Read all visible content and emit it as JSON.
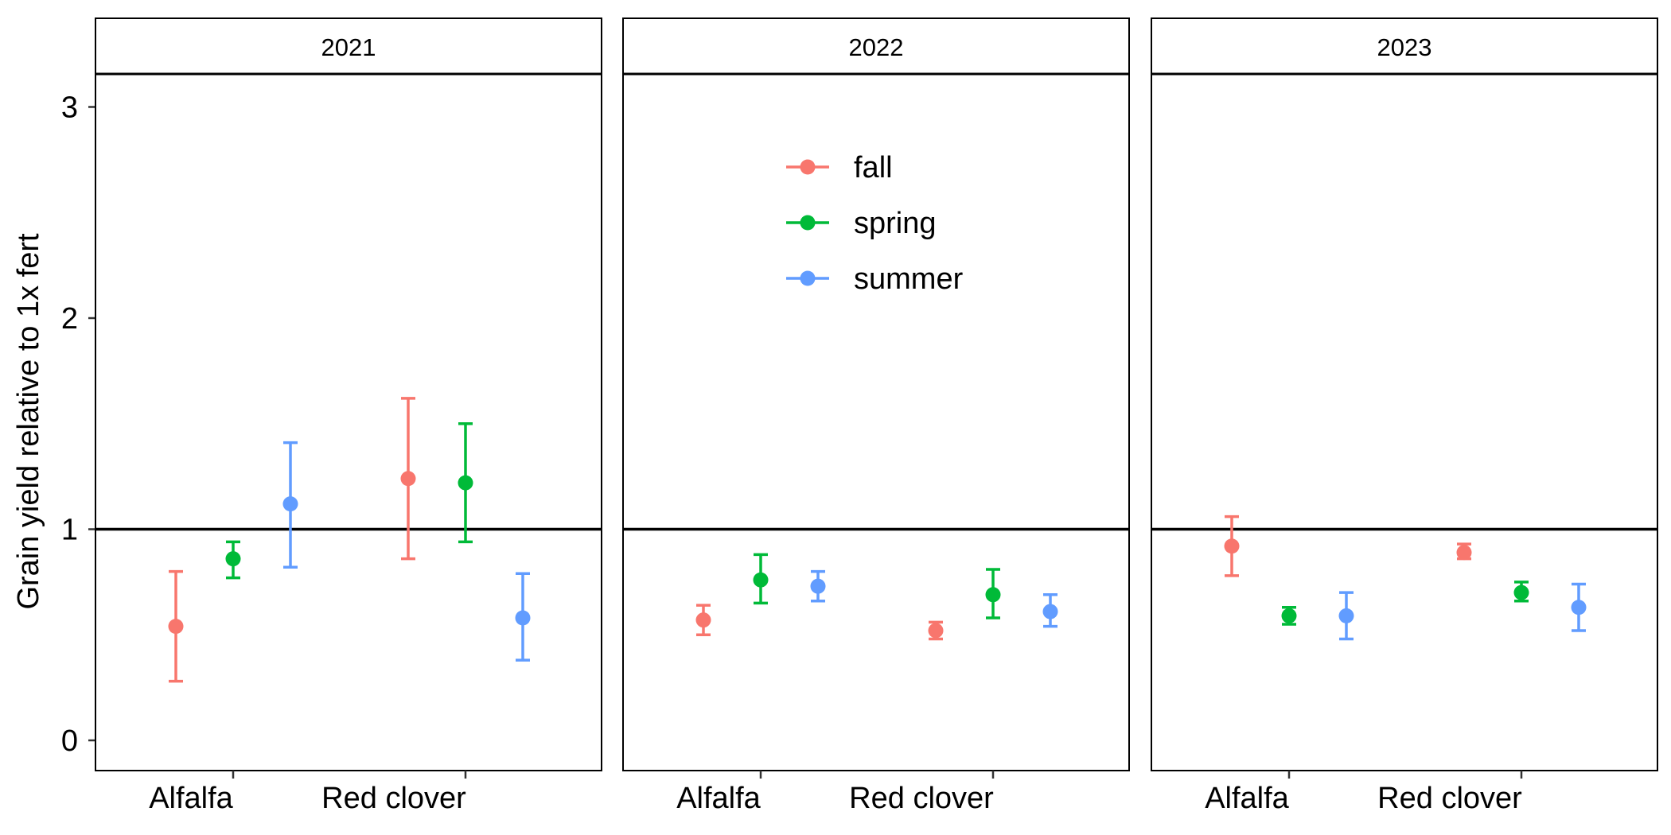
{
  "chart_data": {
    "type": "scatter",
    "ylabel": "Grain yield relative to 1x fert",
    "ylim": [
      -0.14,
      3.14
    ],
    "yticks": [
      0,
      1,
      2,
      3
    ],
    "categories": [
      "Alfalfa",
      "Red clover"
    ],
    "reference_line_y": 1,
    "grid": false,
    "legend": {
      "placement": "inside-top-center-of-middle-panel",
      "entries": [
        {
          "name": "fall",
          "color": "#F8766D"
        },
        {
          "name": "spring",
          "color": "#00BA38"
        },
        {
          "name": "summer",
          "color": "#619CFF"
        }
      ]
    },
    "panels": [
      {
        "title": "2021",
        "points": [
          {
            "category": "Alfalfa",
            "series": "fall",
            "y": 0.54,
            "ymin": 0.28,
            "ymax": 0.8
          },
          {
            "category": "Alfalfa",
            "series": "spring",
            "y": 0.86,
            "ymin": 0.77,
            "ymax": 0.94
          },
          {
            "category": "Alfalfa",
            "series": "summer",
            "y": 1.12,
            "ymin": 0.82,
            "ymax": 1.41
          },
          {
            "category": "Red clover",
            "series": "fall",
            "y": 1.24,
            "ymin": 0.86,
            "ymax": 1.62
          },
          {
            "category": "Red clover",
            "series": "spring",
            "y": 1.22,
            "ymin": 0.94,
            "ymax": 1.5
          },
          {
            "category": "Red clover",
            "series": "summer",
            "y": 0.58,
            "ymin": 0.38,
            "ymax": 0.79
          }
        ]
      },
      {
        "title": "2022",
        "points": [
          {
            "category": "Alfalfa",
            "series": "fall",
            "y": 0.57,
            "ymin": 0.5,
            "ymax": 0.64
          },
          {
            "category": "Alfalfa",
            "series": "spring",
            "y": 0.76,
            "ymin": 0.65,
            "ymax": 0.88
          },
          {
            "category": "Alfalfa",
            "series": "summer",
            "y": 0.73,
            "ymin": 0.66,
            "ymax": 0.8
          },
          {
            "category": "Red clover",
            "series": "fall",
            "y": 0.52,
            "ymin": 0.48,
            "ymax": 0.56
          },
          {
            "category": "Red clover",
            "series": "spring",
            "y": 0.69,
            "ymin": 0.58,
            "ymax": 0.81
          },
          {
            "category": "Red clover",
            "series": "summer",
            "y": 0.61,
            "ymin": 0.54,
            "ymax": 0.69
          }
        ]
      },
      {
        "title": "2023",
        "points": [
          {
            "category": "Alfalfa",
            "series": "fall",
            "y": 0.92,
            "ymin": 0.78,
            "ymax": 1.06
          },
          {
            "category": "Alfalfa",
            "series": "spring",
            "y": 0.59,
            "ymin": 0.55,
            "ymax": 0.63
          },
          {
            "category": "Alfalfa",
            "series": "summer",
            "y": 0.59,
            "ymin": 0.48,
            "ymax": 0.7
          },
          {
            "category": "Red clover",
            "series": "fall",
            "y": 0.89,
            "ymin": 0.86,
            "ymax": 0.93
          },
          {
            "category": "Red clover",
            "series": "spring",
            "y": 0.7,
            "ymin": 0.66,
            "ymax": 0.75
          },
          {
            "category": "Red clover",
            "series": "summer",
            "y": 0.63,
            "ymin": 0.52,
            "ymax": 0.74
          }
        ]
      }
    ]
  }
}
